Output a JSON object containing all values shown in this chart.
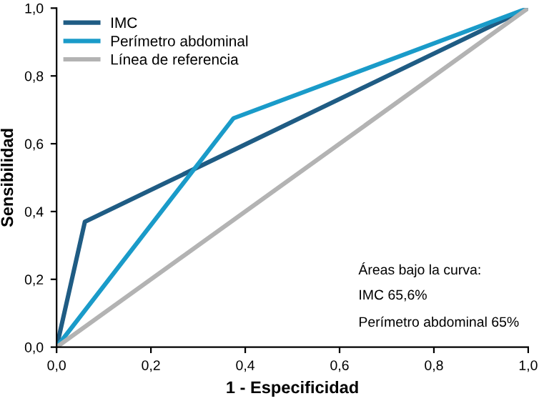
{
  "chart_data": {
    "type": "line",
    "xlabel": "1 - Especificidad",
    "ylabel": "Sensibilidad",
    "series": [
      {
        "name": "IMC",
        "color": "#1f5c84",
        "x": [
          0,
          0.06,
          1
        ],
        "values": [
          0,
          0.37,
          1
        ]
      },
      {
        "name": "Perímetro abdominal",
        "color": "#1a9bc9",
        "x": [
          0,
          0.375,
          1
        ],
        "values": [
          0,
          0.675,
          1
        ]
      },
      {
        "name": "Línea de referencia",
        "color": "#b3b3b3",
        "x": [
          0,
          1
        ],
        "values": [
          0,
          1
        ]
      }
    ],
    "xlim": [
      0,
      1
    ],
    "ylim": [
      0,
      1
    ],
    "xticks": [
      {
        "value": 0,
        "label": "0,0"
      },
      {
        "value": 0.2,
        "label": "0,2"
      },
      {
        "value": 0.4,
        "label": "0,4"
      },
      {
        "value": 0.6,
        "label": "0,6"
      },
      {
        "value": 0.8,
        "label": "0,8"
      },
      {
        "value": 1,
        "label": "1,0"
      }
    ],
    "yticks": [
      {
        "value": 0,
        "label": "0,0"
      },
      {
        "value": 0.2,
        "label": "0,2"
      },
      {
        "value": 0.4,
        "label": "0,4"
      },
      {
        "value": 0.6,
        "label": "0,6"
      },
      {
        "value": 0.8,
        "label": "0,8"
      },
      {
        "value": 1,
        "label": "1,0"
      }
    ],
    "annotations": [
      "Áreas bajo la curva:",
      "IMC 65,6%",
      "Perímetro abdominal 65%"
    ],
    "legend": "top left",
    "grid": false,
    "marker": "none",
    "line_style": "solid"
  }
}
